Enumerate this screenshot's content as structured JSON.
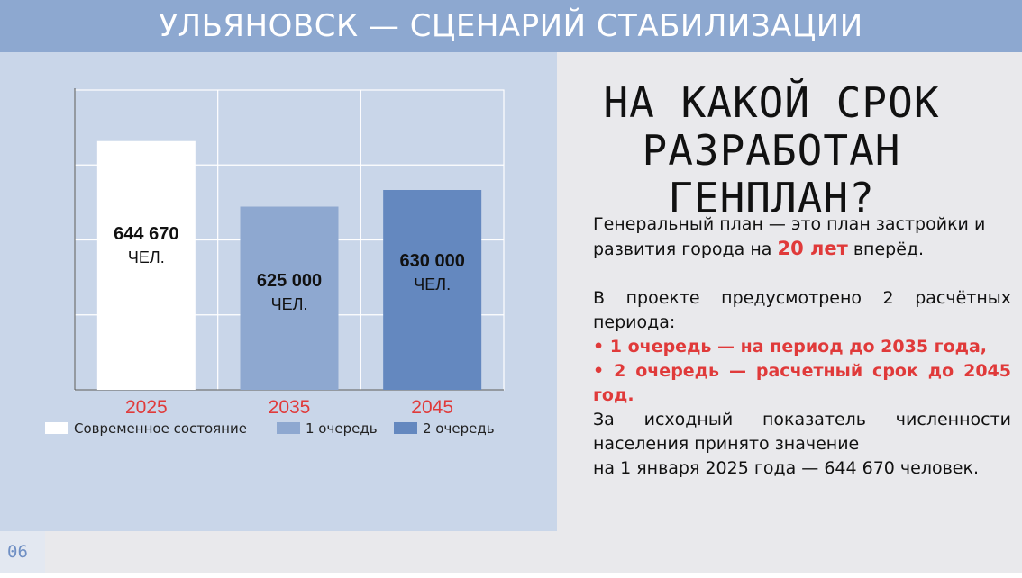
{
  "slide": {
    "title": "УЛЬЯНОВСК — СЦЕНАРИЙ СТАБИЛИЗАЦИИ",
    "question": "НА КАКОЙ СРОК РАЗРАБОТАН ГЕНПЛАН?",
    "page_number": "06"
  },
  "text": {
    "p1_before": "Генеральный план — это план застройки и развития города на ",
    "p1_highlight": "20 лет",
    "p1_after": " вперёд.",
    "p2_line1": "В проекте предусмотрено 2 расчётных периода:",
    "p2_item1": "• 1 очередь — на период до 2035 года,",
    "p2_item2": "• 2 очередь — расчетный срок до 2045 год.",
    "p2_line2": "За исходный показатель численности населения принято значение",
    "p2_line3": "на 1 января 2025 года — 644 670 человек."
  },
  "colors": {
    "title_bar": "#8da8d0",
    "chart_panel": "#c9d6e9",
    "bar_current": "#ffffff",
    "bar_stage1": "#8ea8d0",
    "bar_stage2": "#6488bf",
    "accent_red": "#e03a3a"
  },
  "chart_data": {
    "type": "bar",
    "categories": [
      "2025",
      "2035",
      "2045"
    ],
    "values": [
      644670,
      625000,
      630000
    ],
    "value_labels": [
      "644 670",
      "625 000",
      "630 000"
    ],
    "unit_label": "ЧЕЛ.",
    "series": [
      {
        "name": "Современное состояние",
        "color": "#ffffff"
      },
      {
        "name": "1 очередь",
        "color": "#8ea8d0"
      },
      {
        "name": "2 очередь",
        "color": "#6488bf"
      }
    ],
    "ylim": [
      570000,
      660000
    ],
    "grid": true,
    "legend_position": "bottom",
    "title": "",
    "xlabel": "",
    "ylabel": ""
  }
}
